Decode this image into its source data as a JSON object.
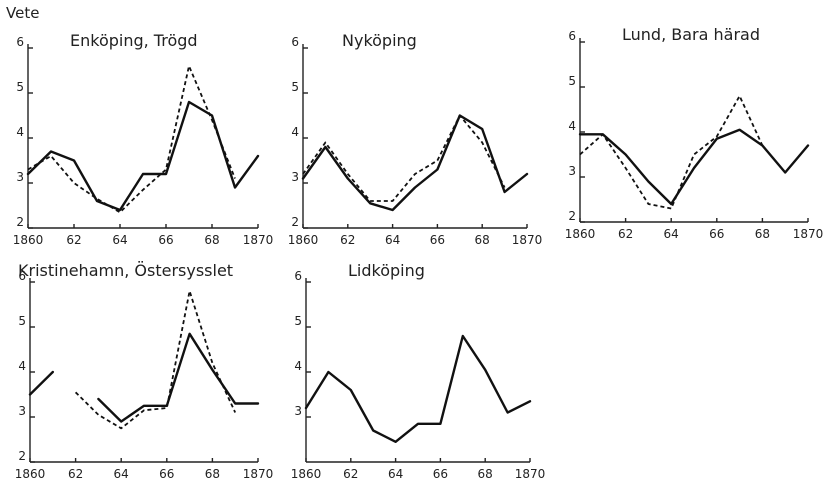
{
  "page_label": "Vete",
  "chart_data": [
    {
      "type": "line",
      "title": "Enköping, Trögd",
      "x_tick_labels": [
        "1860",
        "62",
        "64",
        "66",
        "68",
        "1870"
      ],
      "y_tick_labels": [
        "2",
        "3",
        "4",
        "5",
        "6"
      ],
      "xlim": [
        1860,
        1870
      ],
      "ylim": [
        2,
        6
      ],
      "series": [
        {
          "style": "solid",
          "x": [
            1860,
            1861,
            1862,
            1863,
            1864,
            1865,
            1866,
            1867,
            1868,
            1869,
            1870
          ],
          "y": [
            3.2,
            3.7,
            3.5,
            2.6,
            2.4,
            3.2,
            3.2,
            4.8,
            4.5,
            2.9,
            3.6
          ]
        },
        {
          "style": "dashed",
          "x": [
            1860,
            1861,
            1862,
            1863,
            1864,
            1865,
            1866,
            1867,
            1868,
            1869
          ],
          "y": [
            3.3,
            3.6,
            3.0,
            2.65,
            2.35,
            2.85,
            3.3,
            5.6,
            4.4,
            3.1
          ]
        }
      ]
    },
    {
      "type": "line",
      "title": "Nyköping",
      "x_tick_labels": [
        "1860",
        "62",
        "64",
        "66",
        "68",
        "1870"
      ],
      "y_tick_labels": [
        "2",
        "3",
        "4",
        "5",
        "6"
      ],
      "xlim": [
        1860,
        1870
      ],
      "ylim": [
        2,
        6
      ],
      "series": [
        {
          "style": "solid",
          "x": [
            1860,
            1861,
            1862,
            1863,
            1864,
            1865,
            1866,
            1867,
            1868,
            1869,
            1870
          ],
          "y": [
            3.1,
            3.8,
            3.1,
            2.55,
            2.4,
            2.9,
            3.3,
            4.5,
            4.2,
            2.8,
            3.2
          ]
        },
        {
          "style": "dashed",
          "x": [
            1860,
            1861,
            1862,
            1863,
            1864,
            1865,
            1866,
            1867,
            1868,
            1869
          ],
          "y": [
            3.2,
            3.9,
            3.2,
            2.6,
            2.6,
            3.2,
            3.5,
            4.5,
            3.9,
            2.9
          ]
        }
      ]
    },
    {
      "type": "line",
      "title": "Lund, Bara härad",
      "x_tick_labels": [
        "1860",
        "62",
        "64",
        "66",
        "68",
        "1870"
      ],
      "y_tick_labels": [
        "2",
        "3",
        "4",
        "5",
        "6"
      ],
      "xlim": [
        1860,
        1870
      ],
      "ylim": [
        2,
        6
      ],
      "series": [
        {
          "style": "solid",
          "x": [
            1860,
            1861,
            1862,
            1863,
            1864,
            1865,
            1866,
            1867,
            1868,
            1869,
            1870
          ],
          "y": [
            3.95,
            3.95,
            3.5,
            2.9,
            2.4,
            3.2,
            3.85,
            4.05,
            3.7,
            3.1,
            3.7
          ]
        },
        {
          "style": "dashed",
          "x": [
            1860,
            1861,
            1862,
            1863,
            1864,
            1865,
            1866,
            1867,
            1868
          ],
          "y": [
            3.5,
            3.95,
            3.2,
            2.4,
            2.3,
            3.5,
            3.9,
            4.8,
            3.7
          ]
        }
      ]
    },
    {
      "type": "line",
      "title": "Kristinehamn, Östersysslet",
      "x_tick_labels": [
        "1860",
        "62",
        "64",
        "66",
        "68",
        "1870"
      ],
      "y_tick_labels": [
        "2",
        "3",
        "4",
        "5",
        "6"
      ],
      "xlim": [
        1860,
        1870
      ],
      "ylim": [
        2,
        6
      ],
      "series": [
        {
          "style": "solid",
          "x": [
            1860,
            1861
          ],
          "y": [
            3.5,
            4.0
          ]
        },
        {
          "style": "solid",
          "x": [
            1863,
            1864,
            1865,
            1866,
            1867,
            1868,
            1869,
            1870
          ],
          "y": [
            3.4,
            2.9,
            3.25,
            3.25,
            4.85,
            4.05,
            3.3,
            3.3
          ]
        },
        {
          "style": "dashed",
          "x": [
            1862,
            1863,
            1864,
            1865,
            1866,
            1867,
            1868,
            1869
          ],
          "y": [
            3.55,
            3.05,
            2.75,
            3.15,
            3.2,
            5.8,
            4.2,
            3.1
          ]
        }
      ]
    },
    {
      "type": "line",
      "title": "Lidköping",
      "x_tick_labels": [
        "1860",
        "62",
        "64",
        "66",
        "68",
        "1870"
      ],
      "y_tick_labels": [
        "3",
        "4",
        "5",
        "6"
      ],
      "xlim": [
        1860,
        1870
      ],
      "ylim": [
        2,
        6
      ],
      "series": [
        {
          "style": "solid",
          "x": [
            1860,
            1861,
            1862,
            1863,
            1864,
            1865,
            1866,
            1867,
            1868,
            1869,
            1870
          ],
          "y": [
            3.2,
            4.0,
            3.6,
            2.7,
            2.45,
            2.85,
            2.85,
            4.8,
            4.05,
            3.1,
            3.35
          ]
        }
      ]
    }
  ]
}
